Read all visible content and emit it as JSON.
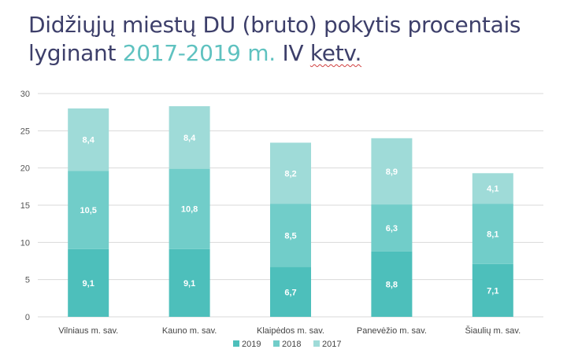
{
  "header": {
    "title_line1": "Didžiųjų miestų DU (bruto) pokytis procentais",
    "title_line2_prefix": "lyginant ",
    "title_line2_highlight": "2017-2019 m.",
    "title_line2_suffix_plain": " IV ",
    "title_line2_suffix_underlined": "ketv."
  },
  "colors": {
    "2019": "#4dbfbb",
    "2018": "#71cdc9",
    "2017": "#9fdbd8",
    "highlight": "#5fc2c0",
    "title": "#3d3f6a",
    "grid": "#d9d9d9"
  },
  "chart_data": {
    "type": "bar",
    "stacked": true,
    "categories": [
      "Vilniaus m. sav.",
      "Kauno m. sav.",
      "Klaipėdos m. sav.",
      "Panevėžio m. sav.",
      "Šiaulių m. sav."
    ],
    "series": [
      {
        "name": "2019",
        "values": [
          9.1,
          9.1,
          6.7,
          8.8,
          7.1
        ],
        "labels": [
          "9,1",
          "9,1",
          "6,7",
          "8,8",
          "7,1"
        ]
      },
      {
        "name": "2018",
        "values": [
          10.5,
          10.8,
          8.5,
          6.3,
          8.1
        ],
        "labels": [
          "10,5",
          "10,8",
          "8,5",
          "6,3",
          "8,1"
        ]
      },
      {
        "name": "2017",
        "values": [
          8.4,
          8.4,
          8.2,
          8.9,
          4.1
        ],
        "labels": [
          "8,4",
          "8,4",
          "8,2",
          "8,9",
          "4,1"
        ]
      }
    ],
    "ylim": [
      0,
      30
    ],
    "yticks": [
      "0",
      "5",
      "10",
      "15",
      "20",
      "25",
      "30"
    ],
    "ytick_values": [
      0,
      5,
      10,
      15,
      20,
      25,
      30
    ],
    "grid": true,
    "legend_position": "bottom"
  }
}
